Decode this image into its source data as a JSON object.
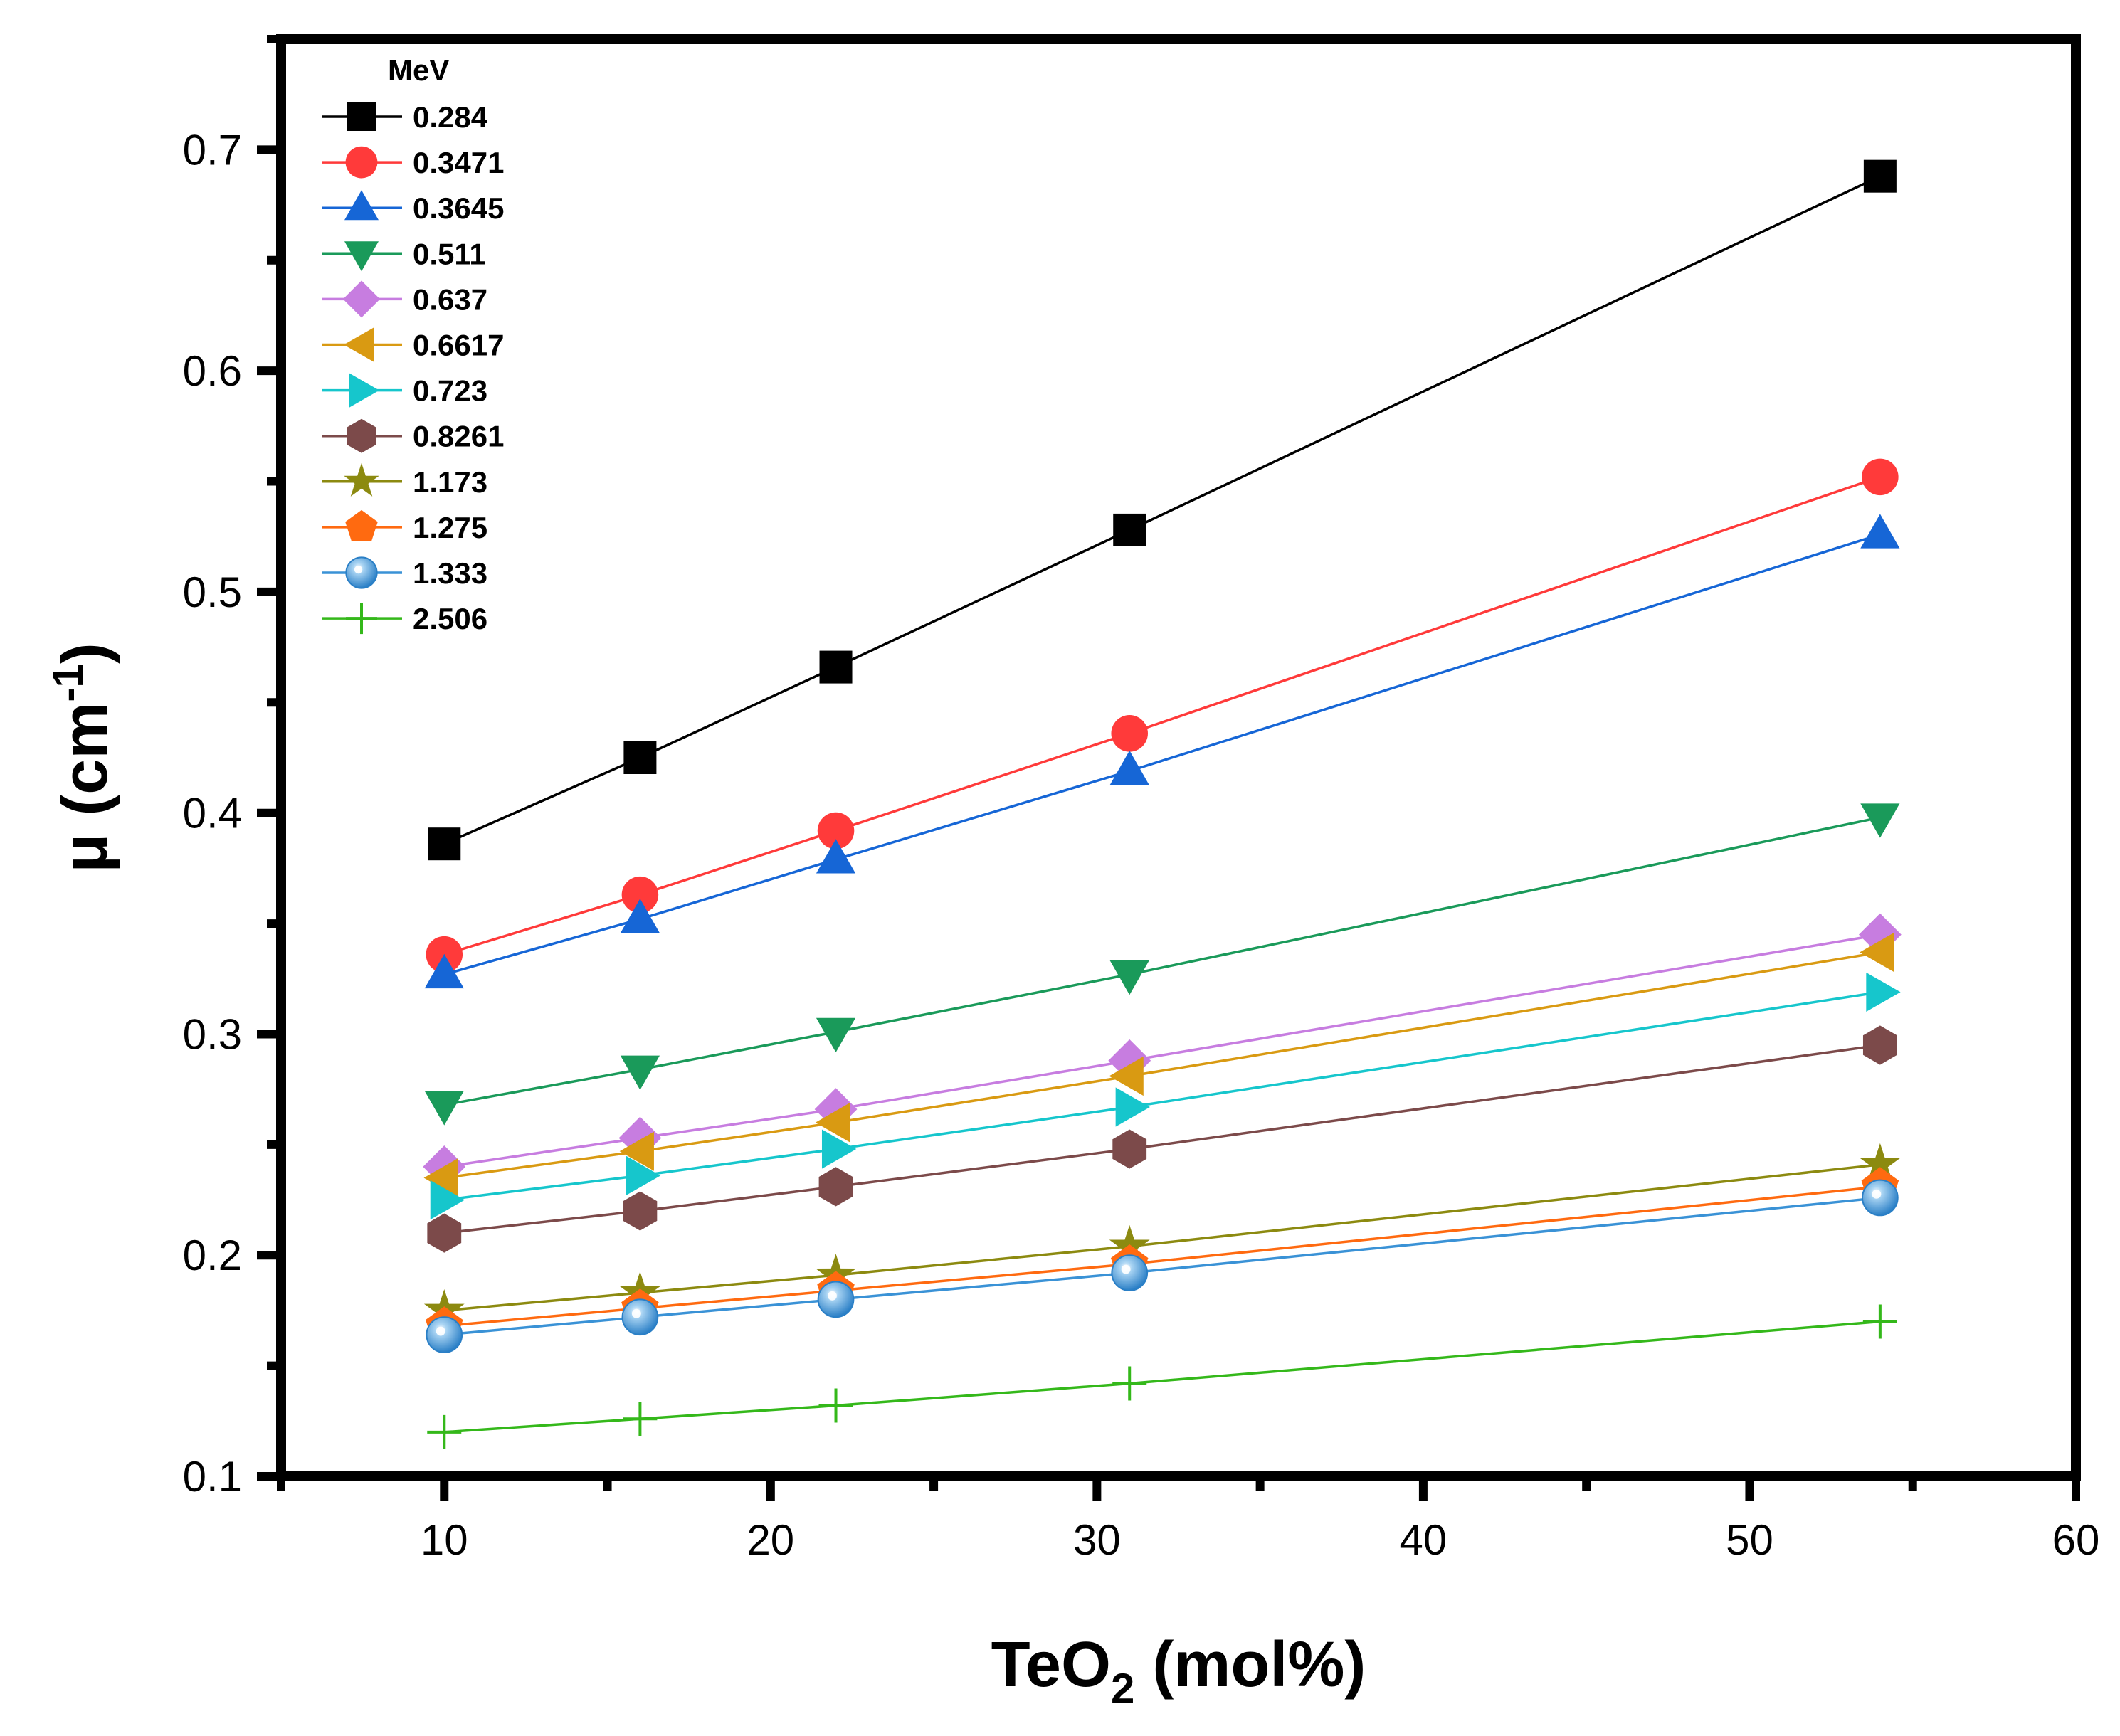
{
  "chart_data": {
    "type": "line",
    "xlabel": "TeO",
    "xlabel_sub": "2",
    "xlabel_rest": " (mol%)",
    "ylabel": "μ (cm",
    "ylabel_sup": "-1",
    "ylabel_rest": ")",
    "xlim": [
      5,
      60
    ],
    "ylim": [
      0.1,
      0.75
    ],
    "x_ticks": [
      10,
      20,
      30,
      40,
      50,
      60
    ],
    "x_tick_labels": [
      "10",
      "20",
      "30",
      "40",
      "50",
      "60"
    ],
    "y_ticks": [
      0.1,
      0.2,
      0.3,
      0.4,
      0.5,
      0.6,
      0.7
    ],
    "y_tick_labels": [
      "0.1",
      "0.2",
      "0.3",
      "0.4",
      "0.5",
      "0.6",
      "0.7"
    ],
    "legend_title": "MeV",
    "legend_position": "top-left",
    "x": [
      10,
      16,
      22,
      31,
      54
    ],
    "series": [
      {
        "name": "0.284",
        "color": "#000000",
        "marker": "square",
        "values": [
          0.386,
          0.425,
          0.466,
          0.528,
          0.688
        ]
      },
      {
        "name": "0.3471",
        "color": "#ff3a3a",
        "marker": "circle",
        "values": [
          0.336,
          0.363,
          0.392,
          0.436,
          0.552
        ]
      },
      {
        "name": "0.3645",
        "color": "#1666d6",
        "marker": "triangle-up",
        "values": [
          0.327,
          0.352,
          0.379,
          0.419,
          0.526
        ]
      },
      {
        "name": "0.511",
        "color": "#1a9a5a",
        "marker": "triangle-down",
        "values": [
          0.268,
          0.284,
          0.301,
          0.327,
          0.398
        ]
      },
      {
        "name": "0.637",
        "color": "#c77de0",
        "marker": "diamond",
        "values": [
          0.24,
          0.253,
          0.266,
          0.288,
          0.345
        ]
      },
      {
        "name": "0.6617",
        "color": "#d99a12",
        "marker": "triangle-left",
        "values": [
          0.235,
          0.247,
          0.26,
          0.281,
          0.337
        ]
      },
      {
        "name": "0.723",
        "color": "#16c6cc",
        "marker": "triangle-right",
        "values": [
          0.225,
          0.236,
          0.248,
          0.267,
          0.319
        ]
      },
      {
        "name": "0.8261",
        "color": "#7c4a4a",
        "marker": "hexagon",
        "values": [
          0.21,
          0.22,
          0.231,
          0.248,
          0.295
        ]
      },
      {
        "name": "1.173",
        "color": "#8c8a10",
        "marker": "star",
        "values": [
          0.175,
          0.183,
          0.191,
          0.204,
          0.241
        ]
      },
      {
        "name": "1.275",
        "color": "#ff6a10",
        "marker": "pentagon",
        "values": [
          0.168,
          0.176,
          0.184,
          0.196,
          0.231
        ]
      },
      {
        "name": "1.333",
        "color": "#3a92d6",
        "marker": "sphere",
        "values": [
          0.164,
          0.172,
          0.18,
          0.192,
          0.226
        ]
      },
      {
        "name": "2.506",
        "color": "#34b81a",
        "marker": "plus",
        "values": [
          0.12,
          0.126,
          0.132,
          0.142,
          0.17
        ]
      }
    ]
  }
}
